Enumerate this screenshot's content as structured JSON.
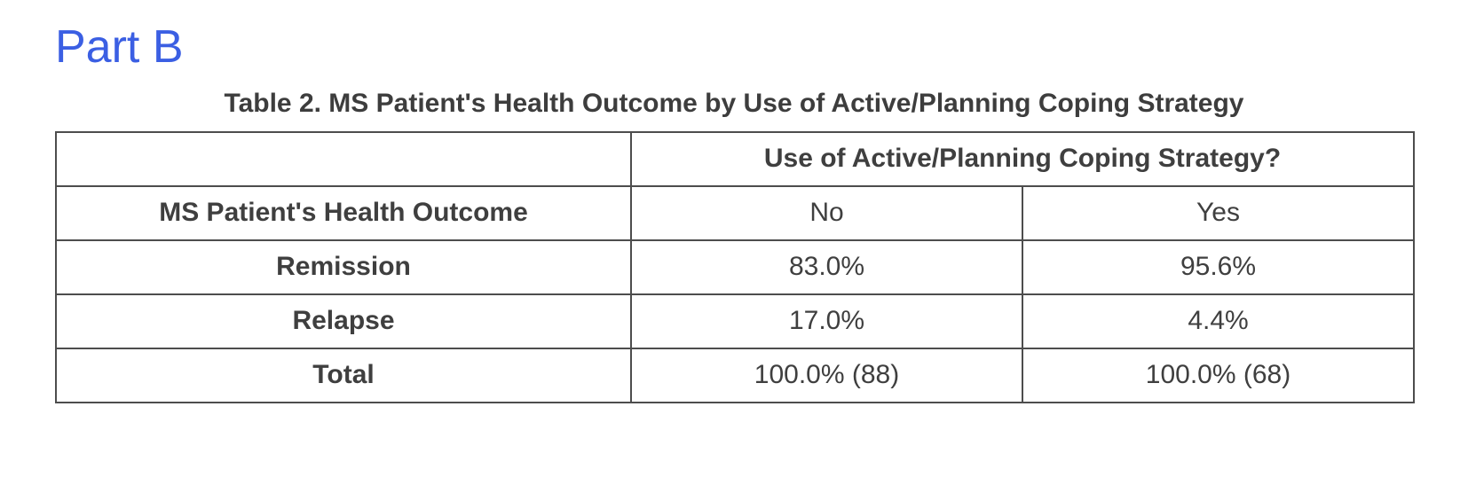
{
  "page": {
    "heading": "Part B"
  },
  "table": {
    "title": "Table 2. MS Patient's Health Outcome by Use of Active/Planning Coping Strategy",
    "spanner_header": "Use of Active/Planning Coping Strategy?",
    "stub_header": "MS Patient's Health Outcome",
    "column_headers": [
      "No",
      "Yes"
    ],
    "rows": [
      {
        "label": "Remission",
        "no": "83.0%",
        "yes": "95.6%"
      },
      {
        "label": "Relapse",
        "no": "17.0%",
        "yes": "4.4%"
      },
      {
        "label": "Total",
        "no": "100.0% (88)",
        "yes": "100.0% (68)"
      }
    ]
  },
  "colors": {
    "heading_blue": "#3b5fe3",
    "text": "#3f3f3f",
    "border": "#4d4d4d"
  }
}
